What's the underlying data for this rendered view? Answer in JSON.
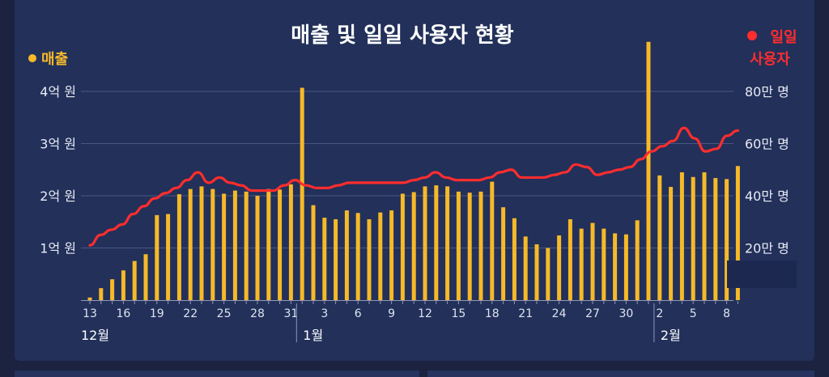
{
  "chart_data": {
    "type": "bar",
    "title": "매출 및 일일 사용자 현황",
    "left_legend": "매출",
    "right_legend": [
      "일일",
      "사용자"
    ],
    "colors": {
      "bar": "#f6b928",
      "line": "#ff2d2d",
      "left_dot": "#f6b928",
      "right_dot": "#ff2d2d",
      "title": "#ffffff"
    },
    "y_left": {
      "ticks": [
        "1억 원",
        "2억 원",
        "3억 원",
        "4억 원"
      ],
      "tick_values": [
        1,
        2,
        3,
        4
      ],
      "ylim": [
        0,
        4.0
      ]
    },
    "y_right": {
      "ticks": [
        "20만 명",
        "40만 명",
        "60만 명",
        "80만 명"
      ],
      "tick_values": [
        20,
        40,
        60,
        80
      ],
      "ylim": [
        0,
        80
      ]
    },
    "x_ticks": [
      "13",
      "16",
      "19",
      "22",
      "25",
      "28",
      "31",
      "3",
      "6",
      "9",
      "12",
      "15",
      "18",
      "21",
      "24",
      "27",
      "30",
      "2",
      "5",
      "8"
    ],
    "x_tick_days": [
      0,
      3,
      6,
      9,
      12,
      15,
      18,
      21,
      24,
      27,
      30,
      33,
      36,
      39,
      42,
      45,
      48,
      51,
      54,
      57
    ],
    "months": [
      {
        "label": "12월",
        "day": 0
      },
      {
        "label": "1월",
        "day": 19
      },
      {
        "label": "2월",
        "day": 51
      }
    ],
    "grid": true,
    "series": [
      {
        "kind": "bar",
        "values": [
          0.05,
          0.23,
          0.4,
          0.57,
          0.75,
          0.88,
          1.63,
          1.65,
          2.03,
          2.13,
          2.18,
          2.13,
          2.04,
          2.1,
          2.08,
          2.0,
          2.13,
          2.12,
          2.22,
          4.07,
          1.82,
          1.58,
          1.55,
          1.72,
          1.67,
          1.55,
          1.68,
          1.72,
          2.04,
          2.07,
          2.18,
          2.2,
          2.18,
          2.08,
          2.06,
          2.08,
          2.27,
          1.78,
          1.57,
          1.22,
          1.07,
          1.0,
          1.24,
          1.55,
          1.37,
          1.48,
          1.37,
          1.28,
          1.26,
          1.53,
          4.95,
          2.39,
          2.17,
          2.45,
          2.36,
          2.45,
          2.34,
          2.32,
          2.57
        ]
      },
      {
        "kind": "line",
        "values": [
          21,
          25,
          27,
          29,
          33,
          36,
          39,
          41,
          43,
          46,
          49,
          45,
          47,
          45,
          44,
          42,
          42,
          42,
          44,
          46,
          44,
          43,
          43,
          44,
          45,
          45,
          45,
          45,
          45,
          45,
          46,
          47,
          49,
          47,
          46,
          46,
          46,
          47,
          49,
          50,
          47,
          47,
          47,
          48,
          49,
          52,
          51,
          48,
          49,
          50,
          51,
          54,
          57,
          59,
          61,
          66,
          62,
          57,
          58,
          63,
          65
        ]
      }
    ]
  }
}
